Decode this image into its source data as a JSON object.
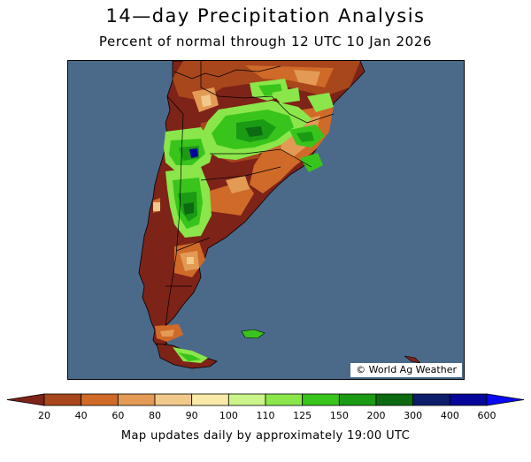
{
  "header": {
    "title": "14—day Precipitation Analysis",
    "subtitle": "Percent of normal through 12 UTC 10 Jan 2026"
  },
  "map": {
    "region": "southern South America",
    "ocean_color": "#4b6a8a",
    "credit": "© World Ag Weather"
  },
  "legend": {
    "ticks": [
      "20",
      "40",
      "60",
      "80",
      "90",
      "100",
      "110",
      "125",
      "150",
      "200",
      "300",
      "400",
      "600"
    ],
    "colors": [
      "#7e2318",
      "#a8461c",
      "#cf6a28",
      "#e29a55",
      "#f1c98a",
      "#faeaa8",
      "#cbf58a",
      "#8ae64a",
      "#39c41c",
      "#1b9a14",
      "#0c6a10",
      "#0c1e6a",
      "#06069a",
      "#0a0af5"
    ]
  },
  "footer": "Map updates daily by approximately 19:00 UTC"
}
